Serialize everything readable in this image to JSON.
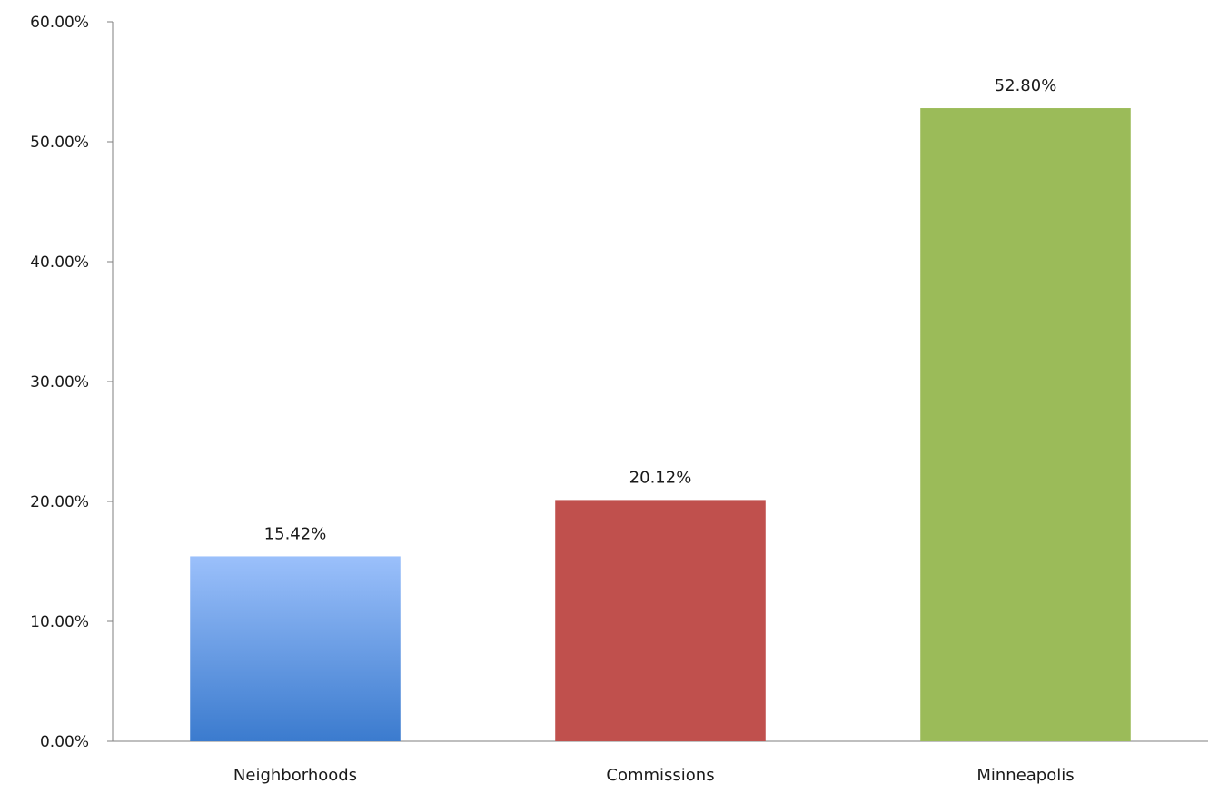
{
  "chart_data": {
    "type": "bar",
    "title": "",
    "xlabel": "",
    "ylabel": "",
    "categories": [
      "Neighborhoods",
      "Commissions",
      "Minneapolis"
    ],
    "values": [
      15.42,
      20.12,
      52.8
    ],
    "data_labels": [
      "15.42%",
      "20.12%",
      "52.80%"
    ],
    "ylim": [
      0,
      60
    ],
    "yticks": [
      0,
      10,
      20,
      30,
      40,
      50,
      60
    ],
    "ytick_labels": [
      "0.00%",
      "10.00%",
      "20.00%",
      "30.00%",
      "40.00%",
      "50.00%",
      "60.00%"
    ],
    "grid": false,
    "legend": "none",
    "colors": {
      "bars": [
        {
          "top": "#9bc0fb",
          "bottom": "#3b7bce"
        },
        {
          "top": "#c0504d",
          "bottom": "#c0504d"
        },
        {
          "top": "#9bbb59",
          "bottom": "#9bbb59"
        }
      ],
      "axis": "#7f7f7f"
    }
  }
}
